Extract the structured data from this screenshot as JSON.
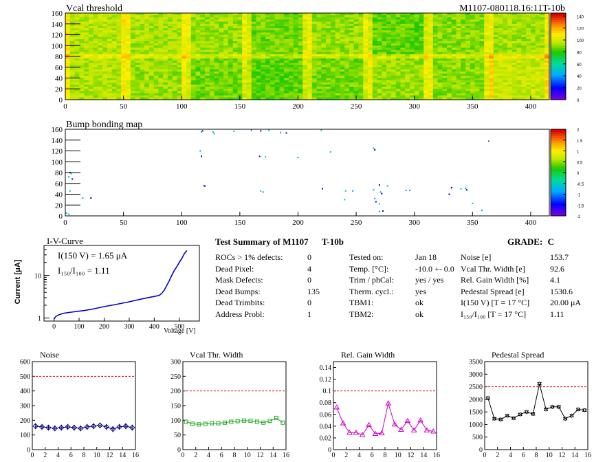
{
  "header": {
    "title": "Vcal threshold",
    "module_id": "M1107-080118.16:11T-10b"
  },
  "vcal_map": {
    "title": "Vcal threshold",
    "chart_data": {
      "type": "heatmap",
      "x_ticks": [
        "0",
        "50",
        "100",
        "150",
        "200",
        "250",
        "300",
        "350",
        "400"
      ],
      "y_ticks": [
        "0",
        "20",
        "40",
        "60",
        "80",
        "100",
        "120",
        "140",
        "160"
      ],
      "xlim": [
        0,
        416
      ],
      "ylim": [
        0,
        160
      ],
      "colorbar_ticks": [
        "0",
        "20",
        "40",
        "60",
        "80",
        "100",
        "120",
        "140"
      ],
      "colorbar_range": [
        0,
        145
      ],
      "roc_means": [
        [
          95,
          92,
          88,
          85,
          88,
          92,
          90,
          98
        ],
        [
          96,
          94,
          92,
          88,
          92,
          86,
          90,
          93
        ]
      ]
    }
  },
  "bump_map": {
    "title": "Bump bonding map",
    "chart_data": {
      "type": "heatmap",
      "x_ticks": [
        "0",
        "50",
        "100",
        "150",
        "200",
        "250",
        "300",
        "350",
        "400"
      ],
      "y_ticks": [
        "0",
        "20",
        "40",
        "60",
        "80",
        "100",
        "120",
        "140",
        "160"
      ],
      "xlim": [
        0,
        416
      ],
      "ylim": [
        0,
        160
      ],
      "colorbar_ticks": [
        "-2",
        "-1.5",
        "-1",
        "-0.5",
        "0",
        "0.5",
        "1",
        "1.5",
        "2"
      ],
      "colorbar_range": [
        -2,
        2
      ],
      "points": [
        [
          117,
          155
        ],
        [
          118,
          157
        ],
        [
          145,
          156
        ],
        [
          160,
          158
        ],
        [
          168,
          157
        ],
        [
          175,
          158
        ],
        [
          185,
          154
        ],
        [
          190,
          153
        ],
        [
          220,
          158
        ],
        [
          116,
          120
        ],
        [
          117,
          110
        ],
        [
          127,
          155
        ],
        [
          128,
          152
        ],
        [
          167,
          110
        ],
        [
          172,
          109
        ],
        [
          200,
          108
        ],
        [
          4,
          80
        ],
        [
          5,
          78
        ],
        [
          3,
          72
        ],
        [
          6,
          68
        ],
        [
          228,
          118
        ],
        [
          265,
          125
        ],
        [
          266,
          122
        ],
        [
          4,
          46
        ],
        [
          119,
          56
        ],
        [
          120,
          55
        ],
        [
          168,
          46
        ],
        [
          170,
          44
        ],
        [
          221,
          50
        ],
        [
          241,
          46
        ],
        [
          247,
          46
        ],
        [
          270,
          57
        ],
        [
          277,
          55
        ],
        [
          271,
          44
        ],
        [
          272,
          41
        ],
        [
          293,
          47
        ],
        [
          296,
          47
        ],
        [
          332,
          52
        ],
        [
          340,
          50
        ],
        [
          344,
          51
        ],
        [
          345,
          48
        ],
        [
          265,
          48
        ],
        [
          266,
          32
        ],
        [
          267,
          26
        ],
        [
          270,
          22
        ],
        [
          15,
          33
        ],
        [
          22,
          33
        ],
        [
          240,
          30
        ],
        [
          270,
          8
        ],
        [
          273,
          9
        ],
        [
          1,
          5
        ],
        [
          3,
          3
        ],
        [
          330,
          40
        ],
        [
          350,
          23
        ],
        [
          358,
          10
        ],
        [
          364,
          138
        ]
      ]
    }
  },
  "iv_curve": {
    "title": "I-V-Curve",
    "annot1": "I(150 V) = 1.65 μA",
    "annot2": "I₁₅₀/I₁₀₀ =  1.11",
    "ylabel": "Current [μA]",
    "chart_data": {
      "type": "line",
      "xlabel": "Voltage [V]",
      "ylabel": "Current [μA]",
      "xlim": [
        -40,
        580
      ],
      "ylim": [
        0.85,
        50
      ],
      "log_y": true,
      "x_ticks": [
        "0",
        "100",
        "200",
        "300",
        "400",
        "500"
      ],
      "y_ticks": [
        "1",
        "10"
      ],
      "x": [
        0,
        5,
        10,
        20,
        30,
        40,
        60,
        80,
        100,
        120,
        150,
        200,
        250,
        300,
        350,
        400,
        420,
        430,
        440,
        450,
        460,
        470,
        480,
        490,
        500,
        510,
        520,
        530
      ],
      "y": [
        0.95,
        1.05,
        1.12,
        1.2,
        1.25,
        1.3,
        1.35,
        1.4,
        1.45,
        1.5,
        1.6,
        1.85,
        2.1,
        2.4,
        2.8,
        3.2,
        3.4,
        3.8,
        4.5,
        5.8,
        7.5,
        10,
        13,
        16,
        20,
        25,
        32,
        38
      ]
    }
  },
  "summary": {
    "title": "Test Summary of M1107",
    "tag": "T-10b",
    "grade_label": "GRADE:",
    "grade": "C",
    "col1_labels": [
      "ROCs > 1% defects:",
      "Dead Pixel:",
      "Mask Defects:",
      "Dead Bumps:",
      "Dead Trimbits:",
      "Address Probl:"
    ],
    "col1_values": [
      "0",
      "4",
      "0",
      "135",
      "0",
      "1"
    ],
    "col2_labels": [
      "Tested on:",
      "Temp. [°C]:",
      "Trim / phCal:",
      "Therm. cycl.:",
      "TBM1:",
      "TBM2:"
    ],
    "col2_values": [
      "Jan 18",
      "-10.0 +- 0.0",
      "yes / yes",
      "yes",
      "ok",
      "ok"
    ],
    "col3_labels": [
      "Noise [e]",
      "Vcal Thr. Width [e]",
      "Rel. Gain Width [%]",
      "Pedestal Spread [e]",
      "I(150 V) [T = 17 °C]",
      "I₁₅₀/I₁₀₀  [T = 17 °C]"
    ],
    "col3_values": [
      "153.7",
      "92.6",
      "4.1",
      "1530.6",
      "20.00 μA",
      "1.11"
    ]
  },
  "small_plots": [
    {
      "title": "Noise",
      "chart_data": {
        "type": "line",
        "ylim": [
          0,
          600
        ],
        "y_ticks": [
          "0",
          "100",
          "200",
          "300",
          "400",
          "500",
          "600"
        ],
        "x_ticks": [
          "0",
          "2",
          "4",
          "6",
          "8",
          "10",
          "12",
          "14",
          "16"
        ],
        "xlim": [
          0,
          16
        ],
        "threshold": 500,
        "color": "#000080",
        "marker": "diamond",
        "error": 20,
        "x": [
          0.5,
          1.5,
          2.5,
          3.5,
          4.5,
          5.5,
          6.5,
          7.5,
          8.5,
          9.5,
          10.5,
          11.5,
          12.5,
          13.5,
          14.5,
          15.5
        ],
        "y": [
          160,
          155,
          150,
          145,
          150,
          155,
          150,
          145,
          155,
          160,
          165,
          155,
          140,
          155,
          160,
          150
        ]
      }
    },
    {
      "title": "Vcal Thr. Width",
      "chart_data": {
        "type": "line",
        "ylim": [
          0,
          300
        ],
        "y_ticks": [
          "0",
          "50",
          "100",
          "150",
          "200",
          "250",
          "300"
        ],
        "x_ticks": [
          "0",
          "2",
          "4",
          "6",
          "8",
          "10",
          "12",
          "14",
          "16"
        ],
        "xlim": [
          0,
          16
        ],
        "threshold": 200,
        "color": "#22aa22",
        "marker": "square",
        "x": [
          0.5,
          1.5,
          2.5,
          3.5,
          4.5,
          5.5,
          6.5,
          7.5,
          8.5,
          9.5,
          10.5,
          11.5,
          12.5,
          13.5,
          14.5,
          15.5
        ],
        "y": [
          95,
          88,
          86,
          88,
          90,
          90,
          92,
          95,
          97,
          99,
          98,
          95,
          92,
          98,
          108,
          92
        ]
      }
    },
    {
      "title": "Rel. Gain Width",
      "chart_data": {
        "type": "line",
        "ylim": [
          0,
          0.15
        ],
        "y_ticks": [
          "0",
          "0.02",
          "0.04",
          "0.06",
          "0.08",
          "0.1",
          "0.12",
          "0.14"
        ],
        "x_ticks": [
          "0",
          "2",
          "4",
          "6",
          "8",
          "10",
          "12",
          "14",
          "16"
        ],
        "xlim": [
          0,
          16
        ],
        "threshold": 0.1,
        "color": "#cc00cc",
        "marker": "triangle",
        "x": [
          0.5,
          1.5,
          2.5,
          3.5,
          4.5,
          5.5,
          6.5,
          7.5,
          8.5,
          9.5,
          10.5,
          11.5,
          12.5,
          13.5,
          14.5,
          15.5
        ],
        "y": [
          0.072,
          0.045,
          0.029,
          0.029,
          0.025,
          0.042,
          0.027,
          0.028,
          0.079,
          0.043,
          0.034,
          0.049,
          0.033,
          0.05,
          0.033,
          0.031
        ]
      }
    },
    {
      "title": "Pedestal Spread",
      "chart_data": {
        "type": "line",
        "ylim": [
          0,
          3500
        ],
        "y_ticks": [
          "0",
          "500",
          "1000",
          "1500",
          "2000",
          "2500",
          "3000",
          "3500"
        ],
        "x_ticks": [
          "0",
          "2",
          "4",
          "6",
          "8",
          "10",
          "12",
          "14",
          "16"
        ],
        "xlim": [
          0,
          16
        ],
        "threshold": 2500,
        "color": "#000000",
        "marker": "star",
        "x": [
          0.5,
          1.5,
          2.5,
          3.5,
          4.5,
          5.5,
          6.5,
          7.5,
          8.5,
          9.5,
          10.5,
          11.5,
          12.5,
          13.5,
          14.5,
          15.5
        ],
        "y": [
          2050,
          1230,
          1200,
          1350,
          1250,
          1400,
          1500,
          1420,
          2620,
          1600,
          1700,
          1700,
          1230,
          1350,
          1600,
          1570
        ]
      }
    }
  ]
}
